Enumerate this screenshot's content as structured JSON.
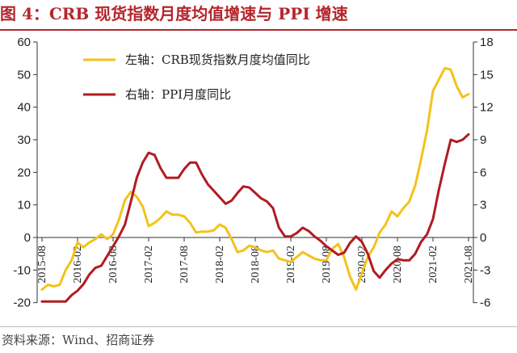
{
  "header": {
    "title": "图 4：CRB 现货指数月度均值增速与 PPI 增速"
  },
  "footer": {
    "source": "资料来源：Wind、招商证券"
  },
  "chart_data": {
    "type": "line",
    "title": "图 4：CRB 现货指数月度均值增速与 PPI 增速",
    "x_tick_labels": [
      "2015-08",
      "2016-02",
      "2016-08",
      "2017-02",
      "2017-08",
      "2018-02",
      "2018-08",
      "2019-02",
      "2019-08",
      "2020-02",
      "2020-08",
      "2021-02",
      "2021-08"
    ],
    "y_left": {
      "ticks": [
        -20,
        -10,
        0,
        10,
        20,
        30,
        40,
        50,
        60
      ],
      "ylim": [
        -20,
        60
      ]
    },
    "y_right": {
      "ticks": [
        -6,
        -3,
        0,
        3,
        6,
        9,
        12,
        15,
        18
      ],
      "ylim": [
        -6,
        18
      ]
    },
    "grid": false,
    "legend_position": "top-left",
    "series": [
      {
        "name": "左轴：CRB现货指数月度均值同比",
        "axis": "left",
        "color": "#f2c31b",
        "x": [
          "2015-08",
          "2015-09",
          "2015-10",
          "2015-11",
          "2015-12",
          "2016-01",
          "2016-02",
          "2016-03",
          "2016-04",
          "2016-05",
          "2016-06",
          "2016-07",
          "2016-08",
          "2016-09",
          "2016-10",
          "2016-11",
          "2016-12",
          "2017-01",
          "2017-02",
          "2017-03",
          "2017-04",
          "2017-05",
          "2017-06",
          "2017-07",
          "2017-08",
          "2017-09",
          "2017-10",
          "2017-11",
          "2017-12",
          "2018-01",
          "2018-02",
          "2018-03",
          "2018-04",
          "2018-05",
          "2018-06",
          "2018-07",
          "2018-08",
          "2018-09",
          "2018-10",
          "2018-11",
          "2018-12",
          "2019-01",
          "2019-02",
          "2019-03",
          "2019-04",
          "2019-05",
          "2019-06",
          "2019-07",
          "2019-08",
          "2019-09",
          "2019-10",
          "2019-11",
          "2019-12",
          "2020-01",
          "2020-02",
          "2020-03",
          "2020-04",
          "2020-05",
          "2020-06",
          "2020-07",
          "2020-08",
          "2020-09",
          "2020-10",
          "2020-11",
          "2020-12",
          "2021-01",
          "2021-02",
          "2021-03",
          "2021-04",
          "2021-05",
          "2021-06",
          "2021-07",
          "2021-08"
        ],
        "values": [
          -16,
          -14.5,
          -15,
          -14.5,
          -10,
          -7,
          -1.5,
          -3,
          -1.5,
          -0.5,
          1,
          -0.5,
          1,
          5.5,
          11.5,
          14,
          12.5,
          9.5,
          3.5,
          4.5,
          6,
          8,
          7,
          7,
          6.5,
          4.5,
          1.5,
          1.8,
          1.8,
          2.2,
          4,
          3,
          -0.5,
          -4.5,
          -4,
          -2.5,
          -3,
          -4,
          -4.5,
          -4,
          -6.5,
          -7,
          -7.5,
          -6,
          -4.5,
          -5.5,
          -6.5,
          -7,
          -7,
          -3.5,
          -2,
          -6,
          -12,
          -16,
          -11,
          -6,
          -3,
          1.5,
          4,
          8,
          6.5,
          9,
          11,
          16,
          24,
          33,
          45,
          48.5,
          52,
          51.5,
          46.5,
          43,
          44
        ]
      },
      {
        "name": "右轴：PPI月度同比",
        "axis": "right",
        "color": "#b01c22",
        "x": [
          "2015-08",
          "2015-09",
          "2015-10",
          "2015-11",
          "2015-12",
          "2016-01",
          "2016-02",
          "2016-03",
          "2016-04",
          "2016-05",
          "2016-06",
          "2016-07",
          "2016-08",
          "2016-09",
          "2016-10",
          "2016-11",
          "2016-12",
          "2017-01",
          "2017-02",
          "2017-03",
          "2017-04",
          "2017-05",
          "2017-06",
          "2017-07",
          "2017-08",
          "2017-09",
          "2017-10",
          "2017-11",
          "2017-12",
          "2018-01",
          "2018-02",
          "2018-03",
          "2018-04",
          "2018-05",
          "2018-06",
          "2018-07",
          "2018-08",
          "2018-09",
          "2018-10",
          "2018-11",
          "2018-12",
          "2019-01",
          "2019-02",
          "2019-03",
          "2019-04",
          "2019-05",
          "2019-06",
          "2019-07",
          "2019-08",
          "2019-09",
          "2019-10",
          "2019-11",
          "2019-12",
          "2020-01",
          "2020-02",
          "2020-03",
          "2020-04",
          "2020-05",
          "2020-06",
          "2020-07",
          "2020-08",
          "2020-09",
          "2020-10",
          "2020-11",
          "2020-12",
          "2021-01",
          "2021-02",
          "2021-03",
          "2021-04",
          "2021-05",
          "2021-06",
          "2021-07",
          "2021-08"
        ],
        "values": [
          -5.9,
          -5.9,
          -5.9,
          -5.9,
          -5.9,
          -5.3,
          -4.9,
          -4.3,
          -3.4,
          -2.8,
          -2.6,
          -1.7,
          -0.8,
          0.1,
          1.2,
          3.3,
          5.5,
          6.9,
          7.8,
          7.6,
          6.4,
          5.5,
          5.5,
          5.5,
          6.3,
          6.9,
          6.9,
          5.8,
          4.9,
          4.3,
          3.7,
          3.1,
          3.4,
          4.1,
          4.7,
          4.6,
          4.1,
          3.6,
          3.3,
          2.7,
          0.9,
          0.1,
          0.1,
          0.4,
          0.9,
          0.6,
          0.1,
          -0.3,
          -0.8,
          -1.2,
          -1.6,
          -1.4,
          -0.5,
          0.1,
          -0.4,
          -1.5,
          -3.1,
          -3.7,
          -3.0,
          -2.4,
          -2.0,
          -2.1,
          -2.1,
          -1.5,
          -0.4,
          0.3,
          1.7,
          4.4,
          6.8,
          9.0,
          8.8,
          9.0,
          9.5
        ]
      }
    ]
  }
}
